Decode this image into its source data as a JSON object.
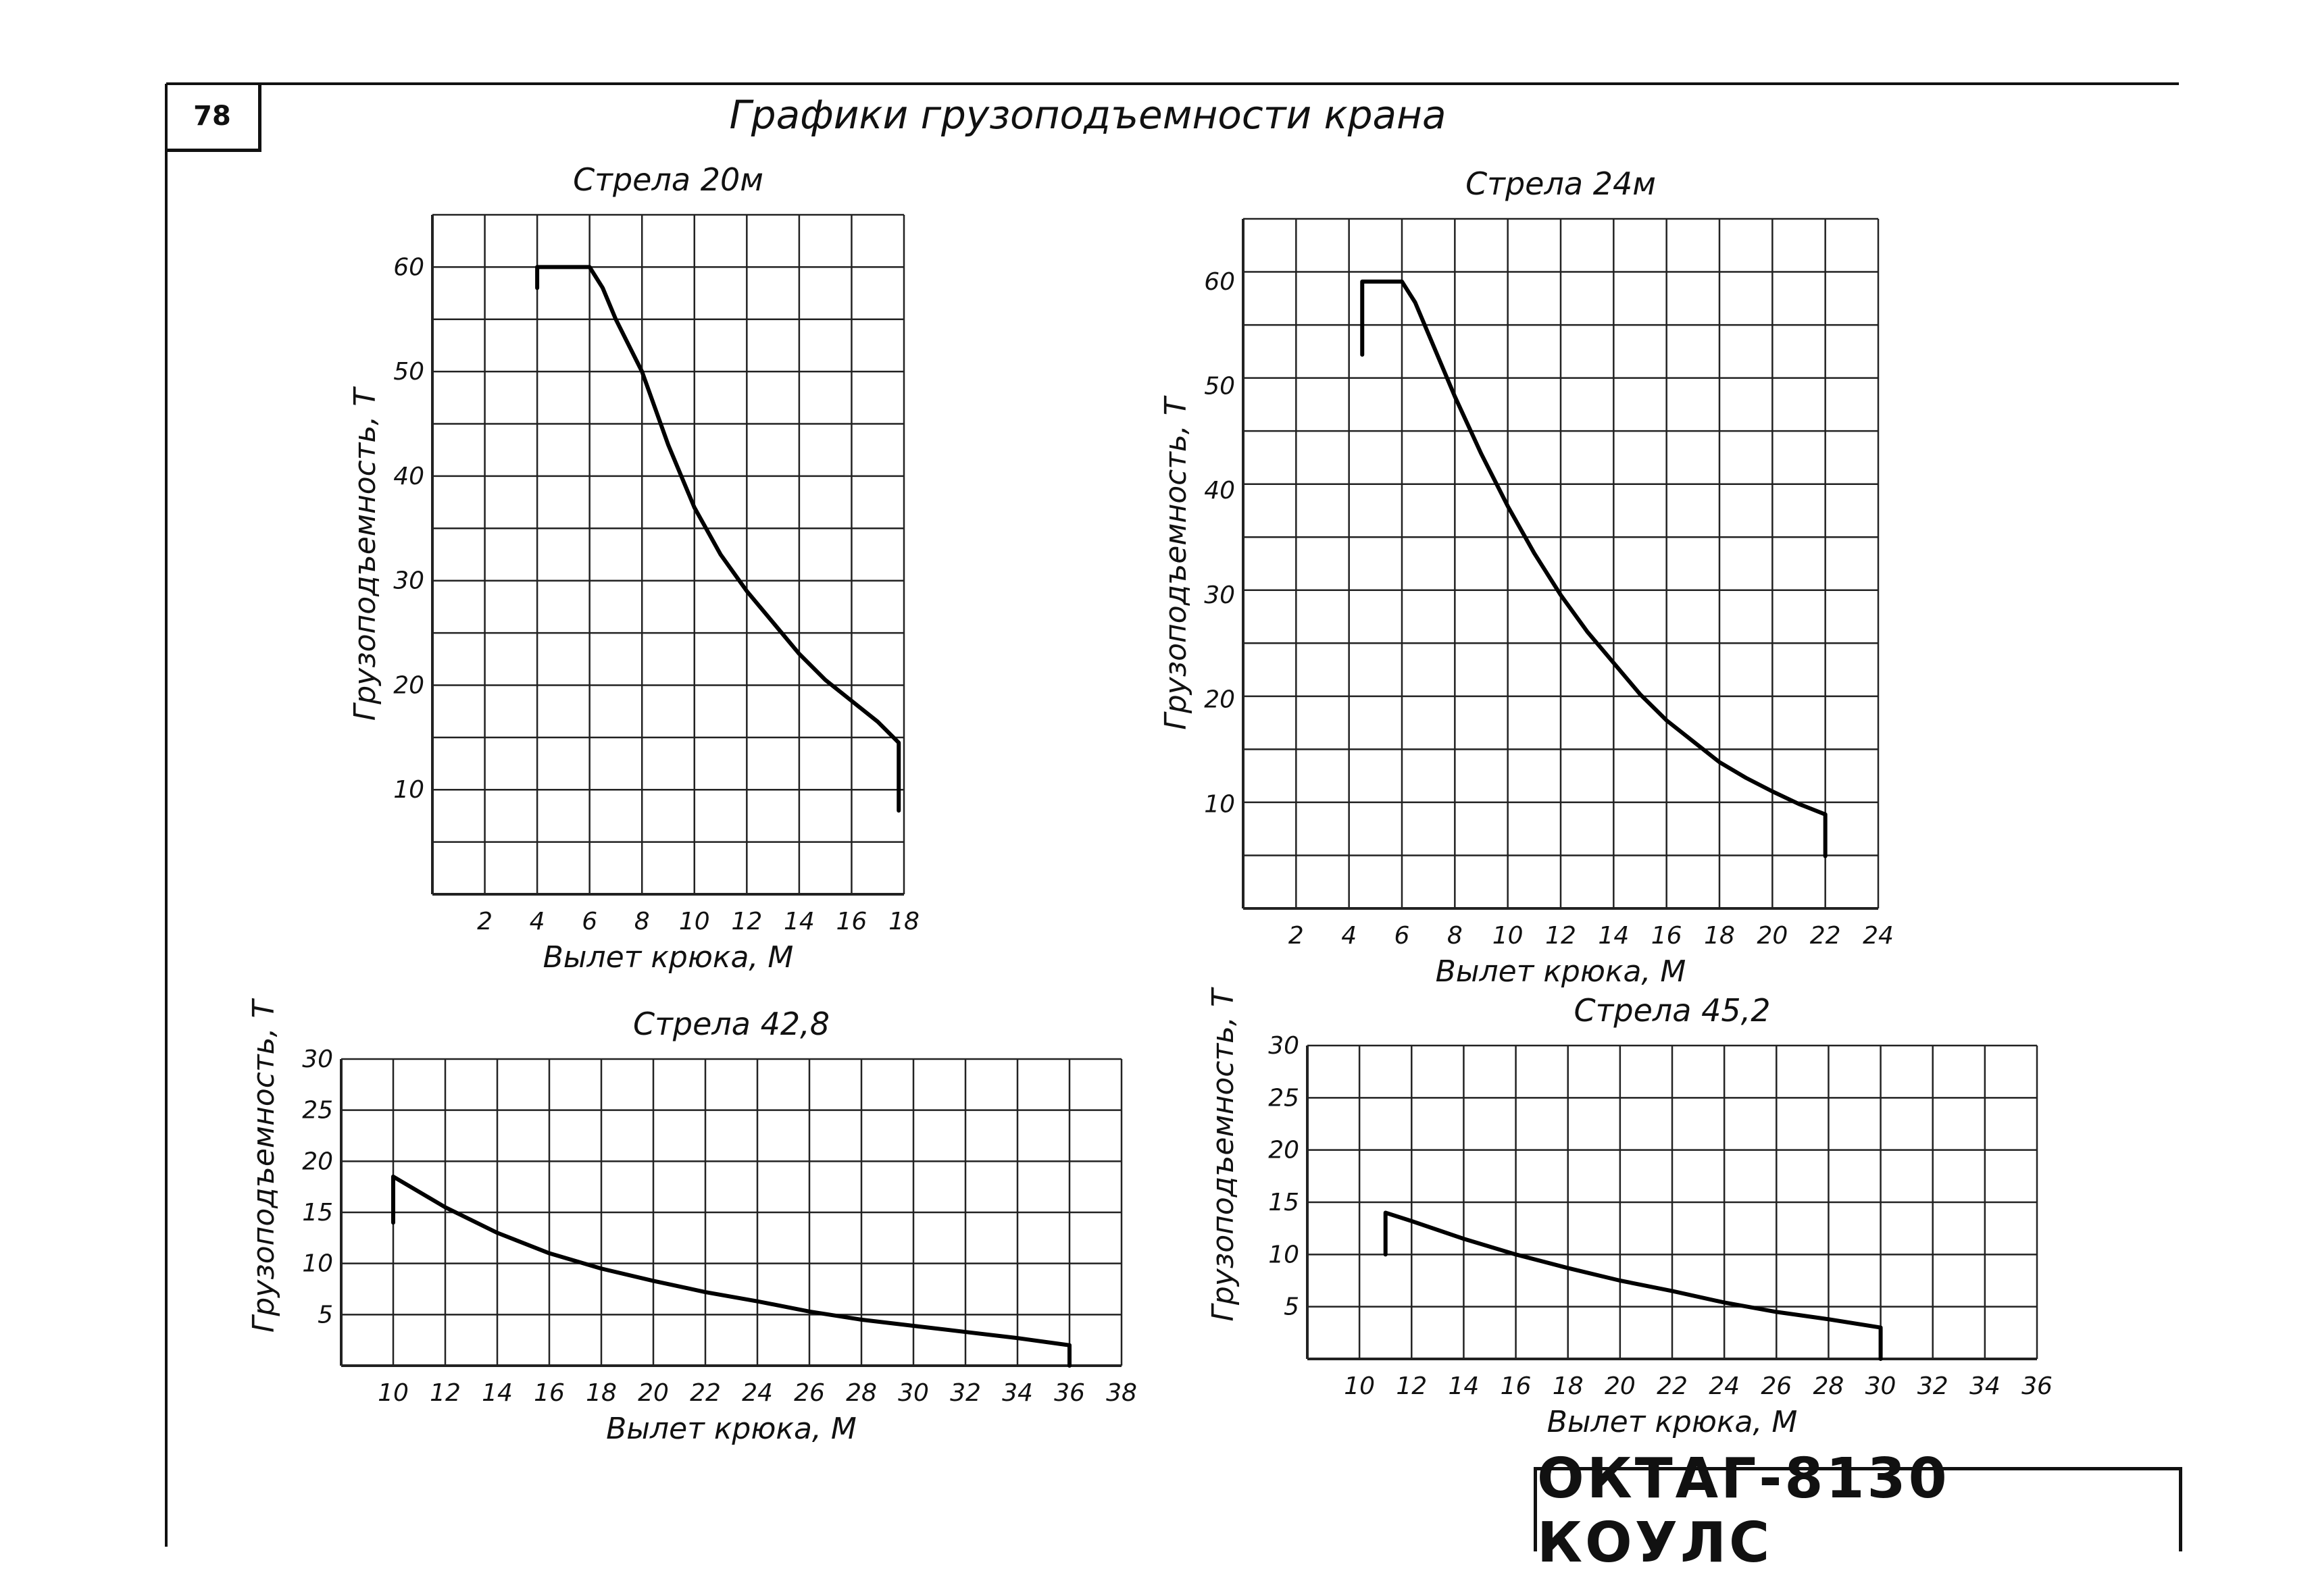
{
  "page": {
    "number": "78",
    "title": "Графики грузоподъемности крана",
    "stamp": "ОКТАГ-8130 КОУЛС"
  },
  "chart_data": [
    {
      "type": "line",
      "title": "Стрела 20м",
      "xlabel": "Вылет крюка, М",
      "ylabel": "Грузоподъемность, Т",
      "xlim": [
        0,
        18
      ],
      "ylim": [
        0,
        65
      ],
      "x_ticks": [
        "2",
        "4",
        "6",
        "8",
        "10",
        "12",
        "14",
        "16",
        "18"
      ],
      "y_ticks": [
        "10",
        "20",
        "30",
        "40",
        "50",
        "60"
      ],
      "grid": true,
      "series": [
        {
          "x": [
            4,
            4,
            6,
            6.5,
            7,
            8,
            9,
            10,
            11,
            12,
            13,
            14,
            15,
            16,
            17,
            17.8,
            17.8
          ],
          "y": [
            58,
            60,
            60,
            58,
            55,
            50,
            43,
            37,
            32.5,
            29,
            26,
            23,
            20.5,
            18.5,
            16.5,
            14.5,
            8
          ]
        }
      ]
    },
    {
      "type": "line",
      "title": "Стрела 24м",
      "xlabel": "Вылет крюка, М",
      "ylabel": "Грузоподъемность, Т",
      "xlim": [
        0,
        24
      ],
      "ylim": [
        0,
        66
      ],
      "x_ticks": [
        "2",
        "4",
        "6",
        "8",
        "10",
        "12",
        "14",
        "16",
        "18",
        "20",
        "22",
        "24"
      ],
      "y_ticks": [
        "10",
        "20",
        "30",
        "40",
        "50",
        "60"
      ],
      "grid": true,
      "series": [
        {
          "x": [
            4.5,
            4.5,
            6,
            6.5,
            7,
            8,
            9,
            10,
            11,
            12,
            13,
            14,
            15,
            16,
            17,
            18,
            19,
            20,
            21,
            22,
            22
          ],
          "y": [
            53,
            60,
            60,
            58,
            55,
            49,
            43.5,
            38.5,
            34,
            30,
            26.5,
            23.5,
            20.5,
            18,
            16,
            14,
            12.5,
            11.2,
            10,
            9,
            5
          ]
        }
      ]
    },
    {
      "type": "line",
      "title": "Стрела 42,8",
      "xlabel": "Вылет крюка, М",
      "ylabel": "Грузоподъемность, Т",
      "xlim": [
        8,
        38
      ],
      "ylim": [
        0,
        30
      ],
      "x_ticks": [
        "10",
        "12",
        "14",
        "16",
        "18",
        "20",
        "22",
        "24",
        "26",
        "28",
        "30",
        "32",
        "34",
        "36",
        "38"
      ],
      "y_ticks": [
        "5",
        "10",
        "15",
        "20",
        "25",
        "30"
      ],
      "grid": true,
      "series": [
        {
          "x": [
            10,
            10,
            12,
            14,
            16,
            18,
            20,
            22,
            24,
            26,
            28,
            30,
            32,
            34,
            36,
            36
          ],
          "y": [
            14,
            18.5,
            15.5,
            13,
            11,
            9.5,
            8.3,
            7.2,
            6.3,
            5.3,
            4.5,
            3.9,
            3.3,
            2.7,
            2,
            0
          ]
        }
      ]
    },
    {
      "type": "line",
      "title": "Стрела 45,2",
      "xlabel": "Вылет крюка, М",
      "ylabel": "Грузоподъемность, Т",
      "xlim": [
        8,
        36
      ],
      "ylim": [
        0,
        30
      ],
      "x_ticks": [
        "10",
        "12",
        "14",
        "16",
        "18",
        "20",
        "22",
        "24",
        "26",
        "28",
        "30",
        "32",
        "34",
        "36"
      ],
      "y_ticks": [
        "5",
        "10",
        "15",
        "20",
        "25",
        "30"
      ],
      "grid": true,
      "series": [
        {
          "x": [
            11,
            11,
            12,
            14,
            16,
            18,
            20,
            22,
            24,
            26,
            28,
            30,
            30
          ],
          "y": [
            10,
            14,
            13.2,
            11.5,
            10,
            8.7,
            7.5,
            6.5,
            5.4,
            4.5,
            3.8,
            3,
            0
          ]
        }
      ]
    }
  ]
}
